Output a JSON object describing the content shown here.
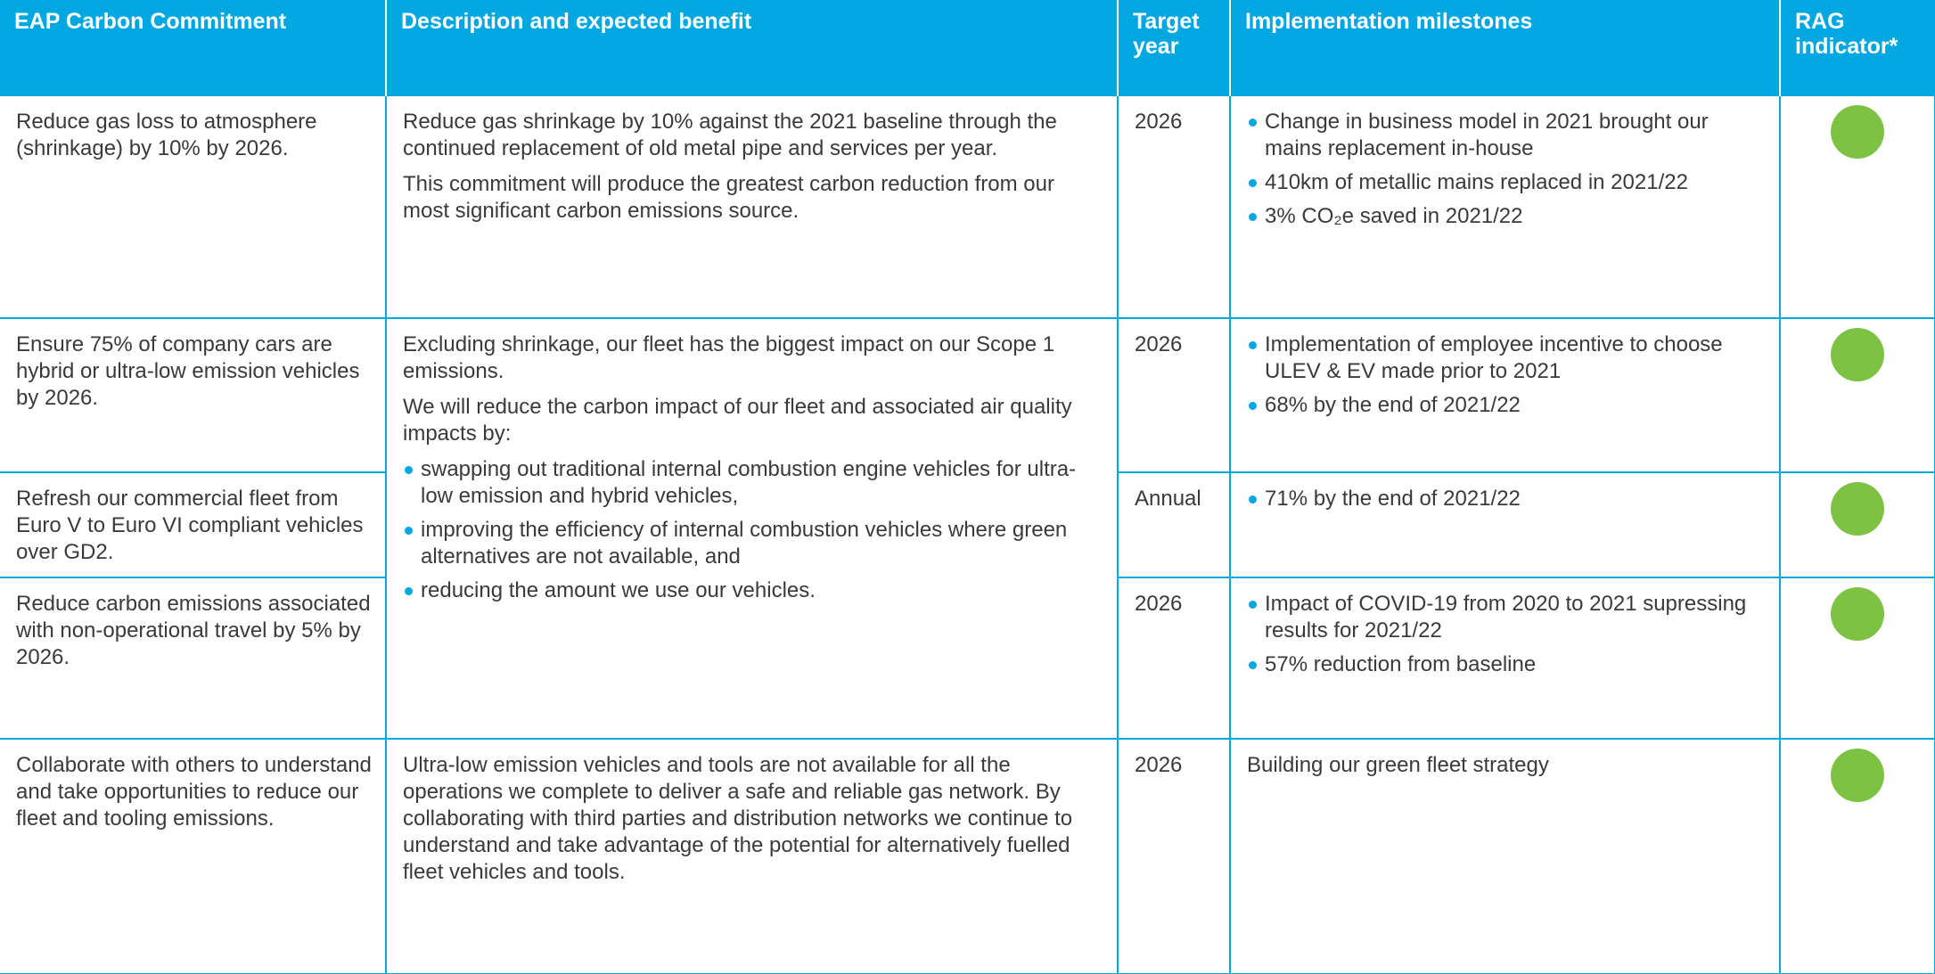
{
  "table": {
    "header": [
      "EAP Carbon Commitment",
      "Description and expected benefit",
      "Target year",
      "Implementation milestones",
      "RAG indicator*"
    ],
    "rag_color": "#7dc243",
    "rows": [
      {
        "commitment": "Reduce gas loss to atmosphere (shrinkage) by 10% by 2026.",
        "description": [
          "Reduce gas shrinkage by 10% against the 2021 baseline through the continued replacement of old metal pipe and services per year.",
          "This commitment will produce the greatest carbon reduction from our most significant carbon emissions source."
        ],
        "year": "2026",
        "milestones": [
          "Change in business model in 2021 brought our mains replacement in-house",
          "410km of metallic mains replaced in 2021/22",
          "3% CO₂e saved in 2021/22"
        ]
      },
      {
        "commitment": "Ensure 75% of company cars are hybrid or ultra-low emission vehicles by 2026.",
        "description": [
          "Excluding shrinkage, our fleet has the biggest impact on our Scope 1 emissions.",
          "We will reduce the carbon impact of our fleet and associated air quality impacts by:"
        ],
        "description_bullets": [
          "swapping out traditional internal combustion engine vehicles for ultra-low emission and hybrid vehicles,",
          "improving the efficiency of internal combustion vehicles where green alternatives are not available, and",
          "reducing the amount we use our vehicles."
        ],
        "year": "2026",
        "milestones": [
          "Implementation of employee incentive to choose ULEV & EV made prior to 2021",
          "68% by the end of 2021/22"
        ]
      },
      {
        "commitment": "Refresh our commercial fleet from Euro V to Euro VI compliant vehicles over GD2.",
        "year": "Annual",
        "milestones": [
          "71% by the end of 2021/22"
        ]
      },
      {
        "commitment": "Reduce carbon emissions associated with non-operational travel by 5% by 2026.",
        "year": "2026",
        "milestones": [
          "Impact of COVID-19 from 2020 to 2021 supressing results for 2021/22",
          "57% reduction from baseline"
        ]
      },
      {
        "commitment": "Collaborate with others to understand and take opportunities to reduce our fleet and tooling emissions.",
        "description": [
          "Ultra-low emission vehicles and tools are not available for all the operations we complete to deliver a safe and reliable gas network. By collaborating with third parties and distribution networks we continue to understand and take advantage of the potential for alternatively fuelled fleet vehicles and tools."
        ],
        "year": "2026",
        "milestone_text": "Building our green fleet strategy"
      }
    ]
  }
}
